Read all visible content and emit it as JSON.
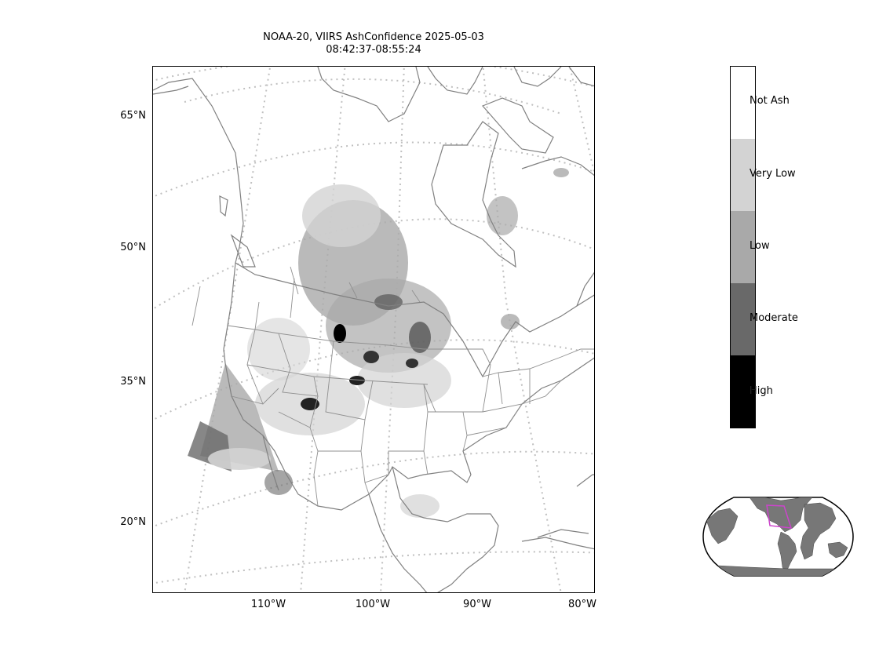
{
  "title": {
    "line1": "NOAA-20, VIIRS AshConfidence 2025-05-03",
    "line2": "08:42:37-08:55:24"
  },
  "map": {
    "lat_labels": [
      "65°N",
      "50°N",
      "35°N",
      "20°N"
    ],
    "lon_labels": [
      "110°W",
      "100°W",
      "90°W",
      "80°W"
    ]
  },
  "colorbar": {
    "categories": [
      {
        "label": "Not Ash",
        "color": "#ffffff"
      },
      {
        "label": "Very Low",
        "color": "#d3d3d3"
      },
      {
        "label": "Low",
        "color": "#a9a9a9"
      },
      {
        "label": "Moderate",
        "color": "#696969"
      },
      {
        "label": "High",
        "color": "#000000"
      }
    ]
  },
  "inset": {
    "land_color": "#777777",
    "extent_box_color": "#cc44cc"
  },
  "colors": {
    "coastline": "#808080",
    "graticule": "#c0c0c0"
  }
}
